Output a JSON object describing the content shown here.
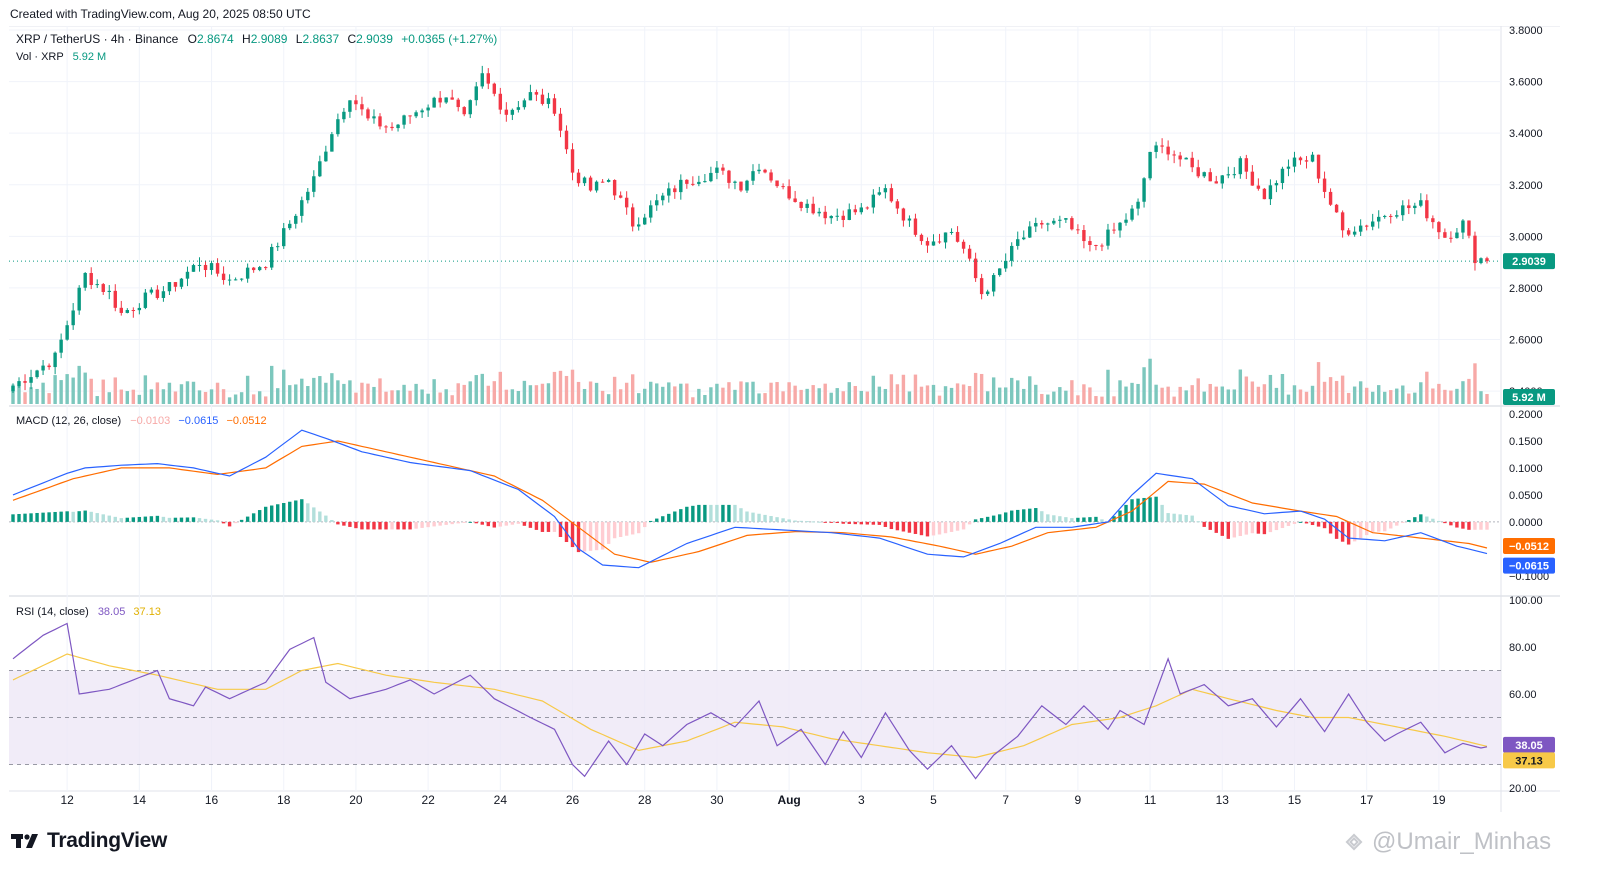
{
  "header": {
    "created_text": "Created with TradingView.com, Aug 20, 2025 08:50 UTC"
  },
  "legend": {
    "symbol": "XRP / TetherUS · 4h · Binance",
    "o_label": "O",
    "o_value": "2.8674",
    "h_label": "H",
    "h_value": "2.9089",
    "l_label": "L",
    "l_value": "2.8637",
    "c_label": "C",
    "c_value": "2.9039",
    "change": "+0.0365 (+1.27%)",
    "vol_label": "Vol · XRP",
    "vol_value": "5.92 M",
    "macd_label": "MACD (12, 26, close)",
    "macd_hist_value": "−0.0103",
    "macd_line_value": "−0.0615",
    "macd_signal_value": "−0.0512",
    "rsi_label": "RSI (14, close)",
    "rsi_value": "38.05",
    "rsi_ma_value": "37.13"
  },
  "price_badges": {
    "last_price": "2.9039",
    "volume": "5.92 M",
    "macd_signal": "−0.0512",
    "macd_line": "−0.0615",
    "rsi": "38.05",
    "rsi_ma": "37.13"
  },
  "branding": {
    "logo_text": "TradingView",
    "watermark_text": "@Umair_Minhas"
  },
  "colors": {
    "up": "#089981",
    "down": "#f23645",
    "vol_up": "#7cc7bd",
    "vol_down": "#f7a9a7",
    "macd_line": "#2962ff",
    "macd_signal": "#ff6d00",
    "rsi_line": "#7e57c2",
    "rsi_ma": "#f7c948",
    "rsi_band": "#ede7f6",
    "last_price_badge": "#089981"
  },
  "chart_data": [
    {
      "type": "candlestick",
      "title": "XRP / TetherUS · 4h · Binance",
      "ylim": [
        2.35,
        3.8
      ],
      "y_ticks": [
        "3.8000",
        "3.6000",
        "3.4000",
        "3.2000",
        "3.0000",
        "2.8000",
        "2.6000",
        "2.4000"
      ],
      "x_ticks": [
        "12",
        "14",
        "16",
        "18",
        "20",
        "22",
        "24",
        "26",
        "28",
        "30",
        "Aug",
        "3",
        "5",
        "7",
        "9",
        "11",
        "13",
        "15",
        "17",
        "19"
      ],
      "start": "Jul 10 2025",
      "interval_hours": 4,
      "candle_count": 246,
      "last_close": 2.9039,
      "close_anchors": [
        [
          0,
          2.42
        ],
        [
          7,
          2.53
        ],
        [
          9,
          2.66
        ],
        [
          12,
          2.85
        ],
        [
          16,
          2.78
        ],
        [
          18,
          2.7
        ],
        [
          22,
          2.76
        ],
        [
          26,
          2.8
        ],
        [
          31,
          2.9
        ],
        [
          36,
          2.83
        ],
        [
          42,
          2.9
        ],
        [
          46,
          3.05
        ],
        [
          50,
          3.22
        ],
        [
          53,
          3.41
        ],
        [
          56,
          3.55
        ],
        [
          59,
          3.45
        ],
        [
          63,
          3.42
        ],
        [
          68,
          3.5
        ],
        [
          72,
          3.55
        ],
        [
          75,
          3.45
        ],
        [
          78,
          3.62
        ],
        [
          82,
          3.48
        ],
        [
          86,
          3.55
        ],
        [
          90,
          3.5
        ],
        [
          93,
          3.25
        ],
        [
          96,
          3.18
        ],
        [
          99,
          3.22
        ],
        [
          103,
          3.05
        ],
        [
          108,
          3.15
        ],
        [
          112,
          3.22
        ],
        [
          117,
          3.25
        ],
        [
          121,
          3.2
        ],
        [
          124,
          3.28
        ],
        [
          128,
          3.18
        ],
        [
          132,
          3.12
        ],
        [
          136,
          3.08
        ],
        [
          141,
          3.1
        ],
        [
          145,
          3.18
        ],
        [
          149,
          3.05
        ],
        [
          152,
          2.98
        ],
        [
          156,
          3.02
        ],
        [
          158,
          2.95
        ],
        [
          161,
          2.78
        ],
        [
          163,
          2.83
        ],
        [
          167,
          2.98
        ],
        [
          171,
          3.05
        ],
        [
          175,
          3.05
        ],
        [
          179,
          2.95
        ],
        [
          183,
          3.02
        ],
        [
          187,
          3.12
        ],
        [
          189,
          3.33
        ],
        [
          192,
          3.34
        ],
        [
          196,
          3.26
        ],
        [
          200,
          3.22
        ],
        [
          204,
          3.28
        ],
        [
          208,
          3.16
        ],
        [
          212,
          3.28
        ],
        [
          216,
          3.3
        ],
        [
          218,
          3.18
        ],
        [
          221,
          3.02
        ],
        [
          225,
          3.05
        ],
        [
          229,
          3.1
        ],
        [
          234,
          3.12
        ],
        [
          238,
          3.0
        ],
        [
          241,
          3.05
        ],
        [
          243,
          2.92
        ],
        [
          246,
          2.9
        ]
      ],
      "volume_max": 60
    },
    {
      "type": "line",
      "title": "MACD (12, 26, close)",
      "series": [
        {
          "name": "MACD",
          "color": "#2962ff",
          "points": [
            [
              0,
              0.05
            ],
            [
              9,
              0.09
            ],
            [
              12,
              0.1
            ],
            [
              18,
              0.105
            ],
            [
              24,
              0.108
            ],
            [
              30,
              0.1
            ],
            [
              36,
              0.085
            ],
            [
              42,
              0.12
            ],
            [
              48,
              0.17
            ],
            [
              52,
              0.155
            ],
            [
              58,
              0.13
            ],
            [
              66,
              0.11
            ],
            [
              76,
              0.095
            ],
            [
              84,
              0.06
            ],
            [
              90,
              0.01
            ],
            [
              94,
              -0.05
            ],
            [
              98,
              -0.08
            ],
            [
              104,
              -0.085
            ],
            [
              112,
              -0.04
            ],
            [
              120,
              -0.01
            ],
            [
              128,
              -0.015
            ],
            [
              136,
              -0.02
            ],
            [
              144,
              -0.03
            ],
            [
              152,
              -0.06
            ],
            [
              158,
              -0.065
            ],
            [
              164,
              -0.04
            ],
            [
              170,
              -0.01
            ],
            [
              176,
              -0.01
            ],
            [
              182,
              0.0
            ],
            [
              186,
              0.05
            ],
            [
              190,
              0.09
            ],
            [
              196,
              0.08
            ],
            [
              202,
              0.03
            ],
            [
              208,
              0.015
            ],
            [
              214,
              0.02
            ],
            [
              218,
              0.005
            ],
            [
              222,
              -0.03
            ],
            [
              228,
              -0.035
            ],
            [
              234,
              -0.02
            ],
            [
              240,
              -0.045
            ],
            [
              246,
              -0.0615
            ]
          ]
        },
        {
          "name": "Signal",
          "color": "#ff6d00",
          "points": [
            [
              0,
              0.04
            ],
            [
              10,
              0.08
            ],
            [
              18,
              0.1
            ],
            [
              26,
              0.1
            ],
            [
              34,
              0.088
            ],
            [
              42,
              0.1
            ],
            [
              48,
              0.14
            ],
            [
              54,
              0.15
            ],
            [
              62,
              0.13
            ],
            [
              72,
              0.105
            ],
            [
              80,
              0.085
            ],
            [
              88,
              0.04
            ],
            [
              94,
              -0.01
            ],
            [
              100,
              -0.06
            ],
            [
              106,
              -0.075
            ],
            [
              114,
              -0.055
            ],
            [
              122,
              -0.025
            ],
            [
              130,
              -0.018
            ],
            [
              138,
              -0.02
            ],
            [
              146,
              -0.028
            ],
            [
              154,
              -0.045
            ],
            [
              160,
              -0.06
            ],
            [
              166,
              -0.045
            ],
            [
              172,
              -0.02
            ],
            [
              180,
              -0.01
            ],
            [
              186,
              0.02
            ],
            [
              192,
              0.075
            ],
            [
              198,
              0.07
            ],
            [
              206,
              0.035
            ],
            [
              214,
              0.02
            ],
            [
              220,
              0.01
            ],
            [
              226,
              -0.02
            ],
            [
              234,
              -0.03
            ],
            [
              242,
              -0.04
            ],
            [
              246,
              -0.0512
            ]
          ]
        }
      ],
      "ylim": [
        -0.13,
        0.2
      ],
      "y_ticks": [
        "0.2000",
        "0.1500",
        "0.1000",
        "0.0500",
        "0.0000",
        "−0.1000"
      ]
    },
    {
      "type": "line",
      "title": "RSI (14, close)",
      "series": [
        {
          "name": "RSI",
          "color": "#7e57c2",
          "points": [
            [
              0,
              75
            ],
            [
              5,
              85
            ],
            [
              9,
              90
            ],
            [
              11,
              60
            ],
            [
              16,
              62
            ],
            [
              24,
              70
            ],
            [
              26,
              58
            ],
            [
              30,
              55
            ],
            [
              32,
              63
            ],
            [
              36,
              58
            ],
            [
              42,
              65
            ],
            [
              46,
              79
            ],
            [
              50,
              84
            ],
            [
              52,
              65
            ],
            [
              56,
              58
            ],
            [
              62,
              62
            ],
            [
              66,
              66
            ],
            [
              70,
              60
            ],
            [
              76,
              68
            ],
            [
              80,
              58
            ],
            [
              86,
              50
            ],
            [
              90,
              45
            ],
            [
              93,
              30
            ],
            [
              95,
              25
            ],
            [
              99,
              40
            ],
            [
              102,
              30
            ],
            [
              105,
              43
            ],
            [
              108,
              38
            ],
            [
              112,
              47
            ],
            [
              116,
              52
            ],
            [
              120,
              46
            ],
            [
              124,
              57
            ],
            [
              127,
              38
            ],
            [
              131,
              45
            ],
            [
              135,
              30
            ],
            [
              138,
              44
            ],
            [
              141,
              33
            ],
            [
              145,
              52
            ],
            [
              149,
              36
            ],
            [
              152,
              28
            ],
            [
              156,
              38
            ],
            [
              160,
              24
            ],
            [
              163,
              34
            ],
            [
              167,
              42
            ],
            [
              171,
              55
            ],
            [
              175,
              47
            ],
            [
              178,
              55
            ],
            [
              182,
              45
            ],
            [
              184,
              53
            ],
            [
              188,
              47
            ],
            [
              192,
              75
            ],
            [
              194,
              60
            ],
            [
              198,
              64
            ],
            [
              202,
              55
            ],
            [
              206,
              58
            ],
            [
              210,
              46
            ],
            [
              214,
              58
            ],
            [
              218,
              44
            ],
            [
              222,
              60
            ],
            [
              225,
              48
            ],
            [
              228,
              40
            ],
            [
              230,
              43
            ],
            [
              234,
              48
            ],
            [
              238,
              35
            ],
            [
              241,
              39
            ],
            [
              244,
              37
            ],
            [
              246,
              38.05
            ]
          ]
        },
        {
          "name": "RSI MA",
          "color": "#f7c948",
          "points": [
            [
              0,
              66
            ],
            [
              9,
              77
            ],
            [
              16,
              72
            ],
            [
              24,
              68
            ],
            [
              34,
              62
            ],
            [
              42,
              62
            ],
            [
              48,
              70
            ],
            [
              54,
              73
            ],
            [
              62,
              68
            ],
            [
              70,
              65
            ],
            [
              80,
              62
            ],
            [
              88,
              57
            ],
            [
              96,
              45
            ],
            [
              104,
              36
            ],
            [
              112,
              40
            ],
            [
              120,
              48
            ],
            [
              128,
              46
            ],
            [
              136,
              41
            ],
            [
              144,
              38
            ],
            [
              152,
              35
            ],
            [
              160,
              33
            ],
            [
              168,
              38
            ],
            [
              176,
              47
            ],
            [
              184,
              50
            ],
            [
              190,
              55
            ],
            [
              196,
              62
            ],
            [
              202,
              58
            ],
            [
              210,
              53
            ],
            [
              216,
              50
            ],
            [
              222,
              50
            ],
            [
              230,
              46
            ],
            [
              238,
              42
            ],
            [
              246,
              37.13
            ]
          ]
        }
      ],
      "ylim": [
        20,
        100
      ],
      "y_ticks": [
        "100.00",
        "80.00",
        "60.00",
        "20.00"
      ],
      "bands": [
        30,
        70
      ]
    }
  ]
}
